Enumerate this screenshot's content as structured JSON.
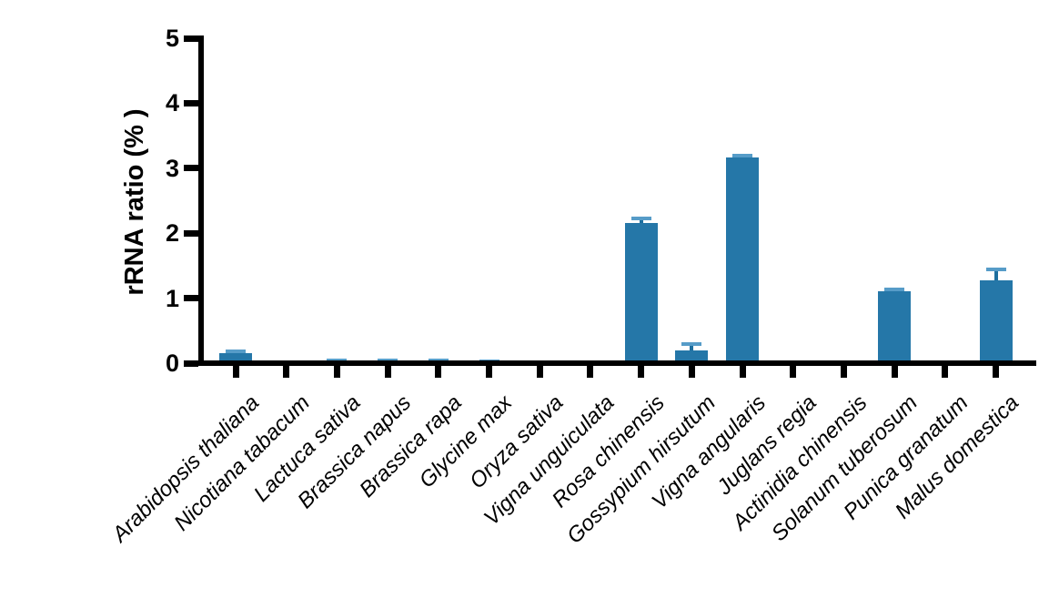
{
  "chart_data": {
    "type": "bar",
    "title": "",
    "xlabel": "",
    "ylabel": "rRNA ratio (% )",
    "ylim": [
      0,
      5
    ],
    "yticks": [
      0,
      1,
      2,
      3,
      4,
      5
    ],
    "grid": false,
    "legend": false,
    "bar_color": "#2577a8",
    "error_stem_color": "#1e6f9f",
    "error_cap_color": "#569cc8",
    "axis_color": "#000000",
    "background_color": "#ffffff",
    "categories": [
      "Arabidopsis thaliana",
      "Nicotiana tabacum",
      "Lactuca sativa",
      "Brassica napus",
      "Brassica rapa",
      "Glycine max",
      "Oryza sativa",
      "Vigna unguiculata",
      "Rosa chinensis",
      "Gossypium hirsutum",
      "Vigna angularis",
      "Juglans regia",
      "Actinidia chinensis",
      "Solanum tuberosum",
      "Punica granatum",
      "Malus domestica"
    ],
    "values": [
      0.15,
      0,
      0.03,
      0.03,
      0.03,
      0.02,
      0.015,
      0,
      2.15,
      0.19,
      3.17,
      0,
      0,
      1.11,
      0,
      1.27
    ],
    "errors_plus": [
      0.03,
      0,
      0.01,
      0.01,
      0.01,
      0.01,
      0.005,
      0,
      0.07,
      0.1,
      0.03,
      0,
      0,
      0.02,
      0,
      0.17
    ]
  }
}
